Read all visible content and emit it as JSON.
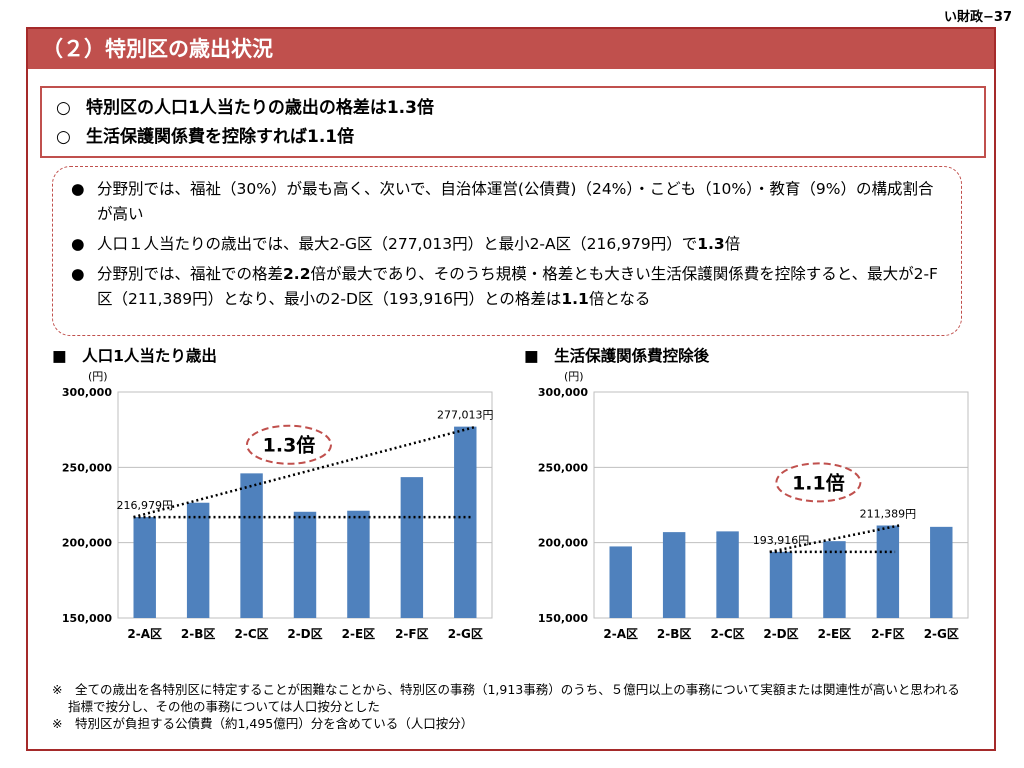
{
  "page_ref": "い財政−37",
  "title": "（２）特別区の歳出状況",
  "summary": [
    {
      "marker": "○",
      "text": "特別区の人口1人当たりの歳出の格差は1.3倍"
    },
    {
      "marker": "○",
      "text": "生活保護関係費を控除すれば1.1倍"
    }
  ],
  "notes": [
    {
      "bullet": "●",
      "segments": [
        {
          "text": "分野別では、福祉（30%）が最も高く、次いで、自治体運営(公債費)（24%）・こども（10%）・教育（9%）の構成割合が高い",
          "bold": false
        }
      ]
    },
    {
      "bullet": "●",
      "segments": [
        {
          "text": "人口１人当たりの歳出では、最大2-G区（277,013円）と最小2-A区（216,979円）で",
          "bold": false
        },
        {
          "text": "1.3",
          "bold": true
        },
        {
          "text": "倍",
          "bold": false
        }
      ]
    },
    {
      "bullet": "●",
      "segments": [
        {
          "text": "分野別では、福祉での格差",
          "bold": false
        },
        {
          "text": "2.2",
          "bold": true
        },
        {
          "text": "倍が最大であり、そのうち規模・格差とも大きい生活保護関係費を控除すると、最大が2-F区（211,389円）となり、最小の2-D区（193,916円）との格差は",
          "bold": false
        },
        {
          "text": "1.1",
          "bold": true
        },
        {
          "text": "倍となる",
          "bold": false
        }
      ]
    }
  ],
  "footnotes": [
    "※　全ての歳出を各特別区に特定することが困難なことから、特別区の事務（1,913事務）のうち、５億円以上の事務について実額または関連性が高いと思われる",
    "指標で按分し、その他の事務については人口按分とした",
    "※　特別区が負担する公債費（約1,495億円）分を含めている（人口按分）"
  ],
  "colors": {
    "bar": "#4f81bd",
    "accent": "#c0504d",
    "grid": "#bfbfbf"
  },
  "chart_data": [
    {
      "type": "bar",
      "heading": "■　人口1人当たり歳出",
      "unit": "(円)",
      "categories": [
        "2-A区",
        "2-B区",
        "2-C区",
        "2-D区",
        "2-E区",
        "2-F区",
        "2-G区"
      ],
      "values": [
        216979,
        226500,
        246000,
        220500,
        221200,
        243500,
        277013
      ],
      "ylim": [
        150000,
        300000
      ],
      "yticks": [
        150000,
        200000,
        250000,
        300000
      ],
      "ytick_labels": [
        "150,000",
        "200,000",
        "250,000",
        "300,000"
      ],
      "annotations": [
        {
          "category": "2-A区",
          "value": 216979,
          "label": "216,979円"
        },
        {
          "category": "2-G区",
          "value": 277013,
          "label": "277,013円"
        }
      ],
      "ratio_label": "1.3倍",
      "ratio_value": 265000,
      "trend_from": "2-A区",
      "trend_to": "2-G区",
      "baseline_to": "2-G区"
    },
    {
      "type": "bar",
      "heading": "■　生活保護関係費控除後",
      "unit": "(円)",
      "categories": [
        "2-A区",
        "2-B区",
        "2-C区",
        "2-D区",
        "2-E区",
        "2-F区",
        "2-G区"
      ],
      "values": [
        197500,
        207000,
        207500,
        193916,
        201000,
        211389,
        210500
      ],
      "ylim": [
        150000,
        300000
      ],
      "yticks": [
        150000,
        200000,
        250000,
        300000
      ],
      "ytick_labels": [
        "150,000",
        "200,000",
        "250,000",
        "300,000"
      ],
      "annotations": [
        {
          "category": "2-D区",
          "value": 193916,
          "label": "193,916円"
        },
        {
          "category": "2-F区",
          "value": 211389,
          "label": "211,389円"
        }
      ],
      "ratio_label": "1.1倍",
      "ratio_value": 240000,
      "trend_from": "2-D区",
      "trend_to": "2-F区",
      "baseline_to": "2-F区"
    }
  ]
}
